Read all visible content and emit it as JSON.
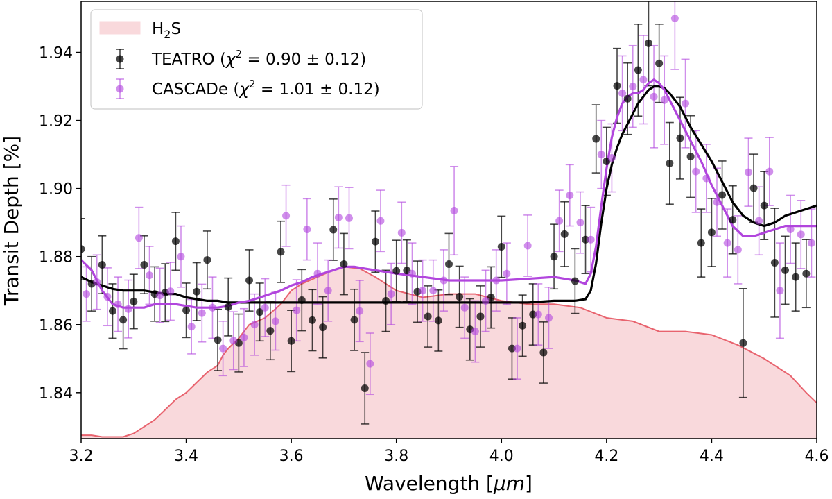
{
  "chart_data": {
    "type": "scatter",
    "xlabel_main": "Wavelength [",
    "xlabel_unit": "μm",
    "xlabel_close": "]",
    "ylabel": "Transit Depth [%]",
    "xlim": [
      3.2,
      4.6
    ],
    "ylim": [
      1.8265,
      1.955
    ],
    "xticks": [
      3.2,
      3.4,
      3.6,
      3.8,
      4.0,
      4.2,
      4.4,
      4.6
    ],
    "xtick_labels": [
      "3.2",
      "3.4",
      "3.6",
      "3.8",
      "4.0",
      "4.2",
      "4.4",
      "4.6"
    ],
    "yticks": [
      1.84,
      1.86,
      1.88,
      1.9,
      1.92,
      1.94
    ],
    "ytick_labels": [
      "1.84",
      "1.86",
      "1.88",
      "1.90",
      "1.92",
      "1.94"
    ],
    "colors": {
      "h2s_fill": "#f9d9dc",
      "h2s_line": "#e8636e",
      "teatro": "#000000",
      "cascade": "#b145dd"
    },
    "legend": [
      {
        "key": "h2s",
        "prefix": "H",
        "sub": "2",
        "suffix": "S"
      },
      {
        "key": "teatro",
        "name": "TEATRO",
        "chi_pre": "(",
        "chi": "χ",
        "sup": "2",
        "chi_post": " = 0.90 ± 0.12)"
      },
      {
        "key": "cascade",
        "name": "CASCADe",
        "chi_pre": "(",
        "chi": "χ",
        "sup": "2",
        "chi_post": " = 1.01 ± 0.12)"
      }
    ],
    "series": [
      {
        "name": "TEATRO",
        "x": [
          3.2,
          3.22,
          3.24,
          3.26,
          3.28,
          3.3,
          3.32,
          3.34,
          3.36,
          3.38,
          3.4,
          3.42,
          3.44,
          3.46,
          3.48,
          3.5,
          3.52,
          3.54,
          3.56,
          3.58,
          3.6,
          3.62,
          3.64,
          3.66,
          3.68,
          3.7,
          3.72,
          3.74,
          3.76,
          3.78,
          3.8,
          3.82,
          3.84,
          3.86,
          3.88,
          3.9,
          3.92,
          3.94,
          3.96,
          3.98,
          4.0,
          4.02,
          4.04,
          4.06,
          4.08,
          4.1,
          4.12,
          4.14,
          4.16,
          4.18,
          4.2,
          4.22,
          4.24,
          4.26,
          4.28,
          4.3,
          4.32,
          4.34,
          4.36,
          4.38,
          4.4,
          4.42,
          4.44,
          4.46,
          4.48,
          4.5,
          4.52,
          4.54,
          4.56,
          4.58
        ],
        "values": [
          1.8822,
          1.872,
          1.8776,
          1.864,
          1.8614,
          1.8668,
          1.8776,
          1.869,
          1.8694,
          1.8845,
          1.8642,
          1.8697,
          1.879,
          1.8555,
          1.8652,
          1.8546,
          1.873,
          1.8637,
          1.8582,
          1.8814,
          1.8552,
          1.8672,
          1.8613,
          1.8592,
          1.8879,
          1.8778,
          1.8614,
          1.8413,
          1.8844,
          1.867,
          1.8758,
          1.8759,
          1.8697,
          1.8624,
          1.8612,
          1.8778,
          1.8682,
          1.8586,
          1.8624,
          1.868,
          1.8829,
          1.853,
          1.8597,
          1.863,
          1.8518,
          1.88,
          1.8866,
          1.8728,
          1.885,
          1.9146,
          1.908,
          1.9302,
          1.9264,
          1.9348,
          1.9427,
          1.9368,
          1.9074,
          1.9148,
          1.9094,
          1.884,
          1.8871,
          1.8981,
          1.8908,
          1.8546,
          1.9001,
          1.895,
          1.8782,
          1.876,
          1.874,
          1.875
        ],
        "errors": [
          0.009,
          0.008,
          0.0085,
          0.008,
          0.0085,
          0.008,
          0.0085,
          0.008,
          0.0085,
          0.0085,
          0.008,
          0.0085,
          0.0085,
          0.009,
          0.0085,
          0.0085,
          0.009,
          0.0085,
          0.0085,
          0.009,
          0.009,
          0.009,
          0.009,
          0.009,
          0.009,
          0.009,
          0.009,
          0.0105,
          0.009,
          0.009,
          0.009,
          0.009,
          0.009,
          0.009,
          0.009,
          0.009,
          0.009,
          0.009,
          0.009,
          0.009,
          0.009,
          0.009,
          0.009,
          0.009,
          0.009,
          0.0095,
          0.0095,
          0.0095,
          0.01,
          0.01,
          0.01,
          0.011,
          0.0105,
          0.0135,
          0.0125,
          0.0115,
          0.012,
          0.012,
          0.012,
          0.01,
          0.01,
          0.01,
          0.01,
          0.016,
          0.01,
          0.01,
          0.016,
          0.01,
          0.01,
          0.01
        ]
      },
      {
        "name": "CASCADe",
        "x": [
          3.21,
          3.23,
          3.25,
          3.27,
          3.29,
          3.31,
          3.33,
          3.35,
          3.37,
          3.39,
          3.41,
          3.43,
          3.45,
          3.47,
          3.49,
          3.51,
          3.53,
          3.55,
          3.57,
          3.59,
          3.61,
          3.63,
          3.65,
          3.67,
          3.69,
          3.71,
          3.73,
          3.75,
          3.77,
          3.79,
          3.81,
          3.83,
          3.85,
          3.87,
          3.89,
          3.91,
          3.93,
          3.95,
          3.97,
          3.99,
          4.01,
          4.03,
          4.05,
          4.07,
          4.09,
          4.11,
          4.13,
          4.15,
          4.17,
          4.19,
          4.21,
          4.23,
          4.25,
          4.27,
          4.29,
          4.31,
          4.33,
          4.35,
          4.37,
          4.39,
          4.41,
          4.43,
          4.45,
          4.47,
          4.49,
          4.51,
          4.53,
          4.55,
          4.57,
          4.59
        ],
        "values": [
          1.869,
          1.8725,
          1.8682,
          1.866,
          1.8646,
          1.8855,
          1.8745,
          1.8686,
          1.8698,
          1.88,
          1.8594,
          1.8634,
          1.865,
          1.853,
          1.8553,
          1.8562,
          1.86,
          1.865,
          1.861,
          1.892,
          1.8642,
          1.888,
          1.875,
          1.87,
          1.8915,
          1.8913,
          1.864,
          1.8485,
          1.8905,
          1.869,
          1.887,
          1.875,
          1.87,
          1.87,
          1.873,
          1.8935,
          1.865,
          1.858,
          1.867,
          1.873,
          1.875,
          1.853,
          1.8832,
          1.863,
          1.862,
          1.8905,
          1.898,
          1.89,
          1.885,
          1.91,
          1.909,
          1.928,
          1.93,
          1.932,
          1.927,
          1.926,
          1.95,
          1.925,
          1.905,
          1.903,
          1.896,
          1.884,
          1.882,
          1.9048,
          1.8905,
          1.905,
          1.87,
          1.888,
          1.8865,
          1.884
        ],
        "errors": [
          0.008,
          0.008,
          0.0085,
          0.008,
          0.0085,
          0.009,
          0.0085,
          0.008,
          0.0085,
          0.009,
          0.008,
          0.0085,
          0.009,
          0.008,
          0.0085,
          0.0085,
          0.009,
          0.0085,
          0.0085,
          0.009,
          0.009,
          0.009,
          0.009,
          0.009,
          0.009,
          0.009,
          0.009,
          0.009,
          0.009,
          0.009,
          0.009,
          0.009,
          0.009,
          0.009,
          0.009,
          0.013,
          0.009,
          0.009,
          0.009,
          0.009,
          0.009,
          0.009,
          0.009,
          0.009,
          0.009,
          0.009,
          0.009,
          0.009,
          0.0095,
          0.01,
          0.01,
          0.011,
          0.012,
          0.013,
          0.015,
          0.013,
          0.015,
          0.013,
          0.012,
          0.01,
          0.01,
          0.01,
          0.01,
          0.01,
          0.01,
          0.01,
          0.014,
          0.01,
          0.01,
          0.01
        ]
      }
    ],
    "models": [
      {
        "name": "TEATRO model",
        "x": [
          3.2,
          3.22,
          3.24,
          3.26,
          3.28,
          3.3,
          3.32,
          3.34,
          3.36,
          3.38,
          3.4,
          3.42,
          3.44,
          3.46,
          3.48,
          3.5,
          3.52,
          3.54,
          3.56,
          3.58,
          3.6,
          3.65,
          3.7,
          3.75,
          3.8,
          3.85,
          3.9,
          3.95,
          4.0,
          4.05,
          4.1,
          4.14,
          4.16,
          4.17,
          4.18,
          4.19,
          4.2,
          4.21,
          4.22,
          4.23,
          4.24,
          4.25,
          4.26,
          4.27,
          4.28,
          4.29,
          4.3,
          4.31,
          4.32,
          4.33,
          4.34,
          4.35,
          4.36,
          4.38,
          4.4,
          4.42,
          4.44,
          4.46,
          4.48,
          4.5,
          4.52,
          4.54,
          4.56,
          4.58,
          4.6
        ],
        "values": [
          1.874,
          1.8725,
          1.8715,
          1.8705,
          1.87,
          1.87,
          1.87,
          1.8695,
          1.869,
          1.869,
          1.868,
          1.8675,
          1.867,
          1.867,
          1.8665,
          1.8665,
          1.8665,
          1.8665,
          1.8665,
          1.8665,
          1.8665,
          1.8665,
          1.8665,
          1.8665,
          1.8665,
          1.8665,
          1.8665,
          1.8665,
          1.8665,
          1.8665,
          1.867,
          1.867,
          1.8675,
          1.87,
          1.878,
          1.89,
          1.9,
          1.907,
          1.912,
          1.916,
          1.919,
          1.922,
          1.925,
          1.927,
          1.929,
          1.93,
          1.93,
          1.9295,
          1.928,
          1.926,
          1.924,
          1.921,
          1.918,
          1.913,
          1.908,
          1.902,
          1.896,
          1.892,
          1.89,
          1.889,
          1.89,
          1.892,
          1.893,
          1.894,
          1.895
        ]
      },
      {
        "name": "CASCADe model",
        "x": [
          3.2,
          3.22,
          3.24,
          3.26,
          3.28,
          3.3,
          3.32,
          3.34,
          3.36,
          3.38,
          3.4,
          3.42,
          3.44,
          3.46,
          3.48,
          3.5,
          3.52,
          3.54,
          3.56,
          3.58,
          3.6,
          3.62,
          3.64,
          3.66,
          3.68,
          3.7,
          3.72,
          3.74,
          3.76,
          3.78,
          3.8,
          3.85,
          3.9,
          3.95,
          4.0,
          4.05,
          4.1,
          4.14,
          4.16,
          4.17,
          4.18,
          4.19,
          4.2,
          4.21,
          4.22,
          4.23,
          4.24,
          4.25,
          4.26,
          4.27,
          4.28,
          4.29,
          4.3,
          4.31,
          4.32,
          4.33,
          4.34,
          4.36,
          4.38,
          4.4,
          4.42,
          4.44,
          4.46,
          4.48,
          4.5,
          4.52,
          4.54,
          4.56,
          4.58,
          4.6
        ],
        "values": [
          1.879,
          1.876,
          1.87,
          1.866,
          1.865,
          1.865,
          1.865,
          1.866,
          1.866,
          1.866,
          1.8655,
          1.865,
          1.865,
          1.865,
          1.8655,
          1.8665,
          1.867,
          1.868,
          1.869,
          1.87,
          1.8715,
          1.8725,
          1.874,
          1.875,
          1.876,
          1.877,
          1.877,
          1.8765,
          1.876,
          1.8755,
          1.875,
          1.874,
          1.873,
          1.873,
          1.873,
          1.8735,
          1.874,
          1.873,
          1.872,
          1.875,
          1.883,
          1.895,
          1.906,
          1.915,
          1.921,
          1.925,
          1.927,
          1.928,
          1.928,
          1.929,
          1.931,
          1.932,
          1.931,
          1.929,
          1.926,
          1.923,
          1.92,
          1.914,
          1.908,
          1.901,
          1.895,
          1.889,
          1.886,
          1.886,
          1.887,
          1.888,
          1.889,
          1.889,
          1.889,
          1.889
        ]
      }
    ],
    "h2s_spectrum": {
      "name": "H2S",
      "x": [
        3.2,
        3.22,
        3.24,
        3.26,
        3.28,
        3.3,
        3.32,
        3.34,
        3.36,
        3.38,
        3.4,
        3.42,
        3.44,
        3.46,
        3.47,
        3.48,
        3.5,
        3.52,
        3.55,
        3.58,
        3.6,
        3.62,
        3.65,
        3.68,
        3.7,
        3.73,
        3.76,
        3.8,
        3.85,
        3.9,
        3.95,
        4.0,
        4.05,
        4.1,
        4.15,
        4.2,
        4.25,
        4.3,
        4.35,
        4.4,
        4.45,
        4.5,
        4.55,
        4.58,
        4.6
      ],
      "values": [
        1.8275,
        1.8275,
        1.827,
        1.827,
        1.827,
        1.828,
        1.83,
        1.832,
        1.835,
        1.838,
        1.84,
        1.843,
        1.846,
        1.848,
        1.851,
        1.853,
        1.856,
        1.86,
        1.862,
        1.866,
        1.87,
        1.872,
        1.874,
        1.876,
        1.877,
        1.8765,
        1.874,
        1.87,
        1.868,
        1.869,
        1.869,
        1.867,
        1.866,
        1.866,
        1.865,
        1.862,
        1.861,
        1.858,
        1.858,
        1.857,
        1.854,
        1.85,
        1.845,
        1.84,
        1.837
      ]
    }
  }
}
